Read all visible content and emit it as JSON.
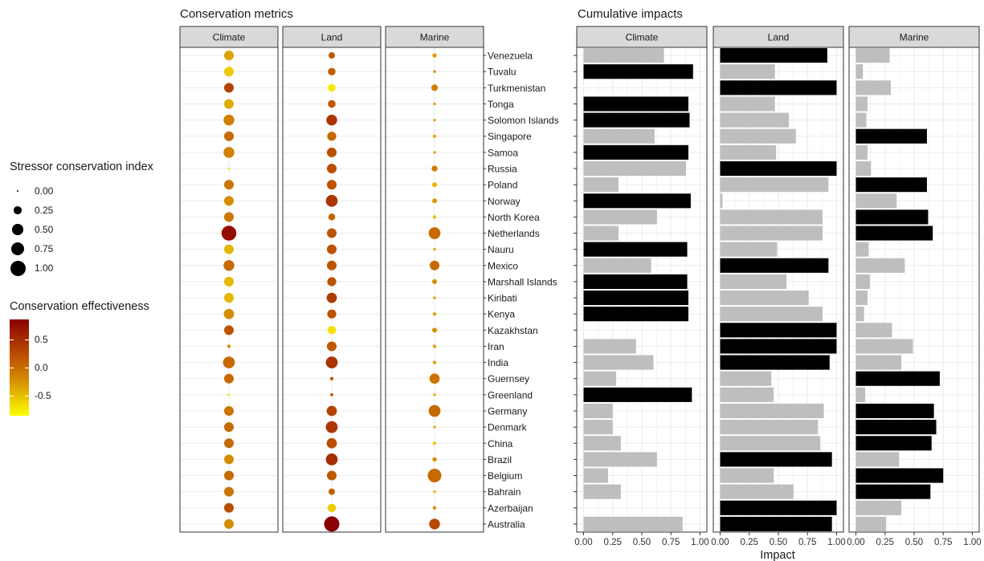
{
  "conservation_title": "Conservation metrics",
  "impacts_title": "Cumulative impacts",
  "size_legend": {
    "title": "Stressor conservation index",
    "labels": [
      "0.00",
      "0.25",
      "0.50",
      "0.75",
      "1.00"
    ],
    "values": [
      0,
      0.25,
      0.5,
      0.75,
      1.0
    ]
  },
  "color_legend": {
    "title": "Conservation effectiveness",
    "labels": [
      "0.5",
      "0.0",
      "-0.5"
    ],
    "values": [
      0.5,
      0.0,
      -0.5
    ],
    "range": [
      -0.85,
      0.85
    ],
    "colors": [
      "#ffff00",
      "#d48a00",
      "#b84a00",
      "#8b0000"
    ]
  },
  "chart_data": [
    {
      "type": "scatter",
      "title": "Conservation metrics",
      "panels": [
        "Climate",
        "Land",
        "Marine"
      ],
      "countries": [
        "Venezuela",
        "Tuvalu",
        "Turkmenistan",
        "Tonga",
        "Solomon Islands",
        "Singapore",
        "Samoa",
        "Russia",
        "Poland",
        "Norway",
        "North Korea",
        "Netherlands",
        "Nauru",
        "Mexico",
        "Marshall Islands",
        "Kiribati",
        "Kenya",
        "Kazakhstan",
        "Iran",
        "India",
        "Guernsey",
        "Greenland",
        "Germany",
        "Denmark",
        "China",
        "Brazil",
        "Belgium",
        "Bahrain",
        "Azerbaijan",
        "Australia"
      ],
      "size_label": "Stressor conservation index",
      "color_label": "Conservation effectiveness",
      "size": {
        "Climate": [
          0.4,
          0.4,
          0.4,
          0.4,
          0.5,
          0.4,
          0.5,
          0.02,
          0.4,
          0.4,
          0.4,
          0.95,
          0.4,
          0.5,
          0.4,
          0.4,
          0.45,
          0.4,
          0.05,
          0.6,
          0.4,
          0.02,
          0.4,
          0.4,
          0.4,
          0.4,
          0.4,
          0.4,
          0.4,
          0.4
        ],
        "Land": [
          0.18,
          0.25,
          0.25,
          0.25,
          0.5,
          0.35,
          0.4,
          0.4,
          0.4,
          0.6,
          0.2,
          0.4,
          0.4,
          0.4,
          0.35,
          0.45,
          0.35,
          0.3,
          0.4,
          0.6,
          0.05,
          0.04,
          0.45,
          0.6,
          0.45,
          0.6,
          0.4,
          0.18,
          0.3,
          1.0
        ],
        "Marine": [
          0.08,
          0.03,
          0.18,
          0.03,
          0.03,
          0.05,
          0.03,
          0.15,
          0.1,
          0.1,
          0.05,
          0.6,
          0.03,
          0.4,
          0.1,
          0.03,
          0.05,
          0.1,
          0.05,
          0.05,
          0.45,
          0.03,
          0.6,
          0.03,
          0.05,
          0.08,
          0.8,
          0.03,
          0.05,
          0.5
        ]
      },
      "effectiveness": {
        "Climate": [
          -0.4,
          -0.6,
          0.35,
          -0.45,
          -0.2,
          0.0,
          -0.2,
          -0.7,
          -0.1,
          -0.3,
          -0.1,
          0.75,
          -0.5,
          0.0,
          -0.5,
          -0.5,
          -0.3,
          0.2,
          -0.3,
          0.0,
          0.0,
          -0.7,
          -0.1,
          0.0,
          0.0,
          -0.3,
          0.0,
          -0.1,
          0.25,
          -0.3
        ],
        "Land": [
          0.15,
          0.1,
          -0.75,
          0.15,
          0.45,
          0.0,
          0.25,
          0.25,
          0.2,
          0.45,
          0.05,
          0.2,
          0.2,
          0.2,
          0.2,
          0.4,
          0.2,
          -0.7,
          0.15,
          0.45,
          0.2,
          0.2,
          0.35,
          0.45,
          0.25,
          0.5,
          0.15,
          0.1,
          -0.6,
          0.85
        ],
        "Marine": [
          -0.4,
          -0.3,
          -0.2,
          -0.4,
          -0.4,
          -0.45,
          -0.4,
          -0.15,
          -0.5,
          -0.35,
          -0.55,
          0.0,
          -0.4,
          0.0,
          -0.3,
          -0.4,
          -0.4,
          -0.3,
          -0.4,
          -0.4,
          -0.1,
          -0.4,
          0.0,
          -0.4,
          -0.6,
          -0.3,
          0.0,
          -0.5,
          -0.3,
          0.3
        ]
      }
    },
    {
      "type": "bar",
      "title": "Cumulative impacts",
      "orientation": "horizontal",
      "panels": [
        "Climate",
        "Land",
        "Marine"
      ],
      "xlabel": "Impact",
      "xlim": [
        0,
        1.0
      ],
      "xticks": [
        "0.00",
        "0.25",
        "0.50",
        "0.75",
        "1.00"
      ],
      "countries": [
        "Venezuela",
        "Tuvalu",
        "Turkmenistan",
        "Tonga",
        "Solomon Islands",
        "Singapore",
        "Samoa",
        "Russia",
        "Poland",
        "Norway",
        "North Korea",
        "Netherlands",
        "Nauru",
        "Mexico",
        "Marshall Islands",
        "Kiribati",
        "Kenya",
        "Kazakhstan",
        "Iran",
        "India",
        "Guernsey",
        "Greenland",
        "Germany",
        "Denmark",
        "China",
        "Brazil",
        "Belgium",
        "Bahrain",
        "Azerbaijan",
        "Australia"
      ],
      "colors": {
        "dominant": "#000000",
        "other": "#bebebe"
      },
      "values": {
        "Climate": [
          0.69,
          0.94,
          0.0,
          0.9,
          0.91,
          0.61,
          0.9,
          0.88,
          0.3,
          0.92,
          0.63,
          0.3,
          0.89,
          0.58,
          0.89,
          0.9,
          0.9,
          0.0,
          0.45,
          0.6,
          0.28,
          0.93,
          0.25,
          0.25,
          0.32,
          0.63,
          0.21,
          0.32,
          0.0,
          0.85
        ],
        "Land": [
          0.92,
          0.47,
          1.0,
          0.47,
          0.59,
          0.65,
          0.48,
          1.0,
          0.93,
          0.02,
          0.88,
          0.88,
          0.49,
          0.93,
          0.57,
          0.76,
          0.88,
          1.0,
          1.0,
          0.94,
          0.44,
          0.46,
          0.89,
          0.84,
          0.86,
          0.96,
          0.46,
          0.63,
          1.0,
          0.96
        ],
        "Marine": [
          0.29,
          0.06,
          0.3,
          0.1,
          0.09,
          0.61,
          0.1,
          0.13,
          0.61,
          0.35,
          0.62,
          0.66,
          0.11,
          0.42,
          0.12,
          0.1,
          0.07,
          0.31,
          0.49,
          0.39,
          0.72,
          0.08,
          0.67,
          0.69,
          0.65,
          0.37,
          0.75,
          0.64,
          0.39,
          0.26
        ]
      },
      "dominant": {
        "Climate": [
          0,
          1,
          0,
          1,
          1,
          0,
          1,
          0,
          0,
          1,
          0,
          0,
          1,
          0,
          1,
          1,
          1,
          0,
          0,
          0,
          0,
          1,
          0,
          0,
          0,
          0,
          0,
          0,
          0,
          0
        ],
        "Land": [
          1,
          0,
          1,
          0,
          0,
          0,
          0,
          1,
          0,
          0,
          0,
          0,
          0,
          1,
          0,
          0,
          0,
          1,
          1,
          1,
          0,
          0,
          0,
          0,
          0,
          1,
          0,
          0,
          1,
          1
        ],
        "Marine": [
          0,
          0,
          0,
          0,
          0,
          1,
          0,
          0,
          1,
          0,
          1,
          1,
          0,
          0,
          0,
          0,
          0,
          0,
          0,
          0,
          1,
          0,
          1,
          1,
          1,
          0,
          1,
          1,
          0,
          0
        ]
      }
    }
  ]
}
